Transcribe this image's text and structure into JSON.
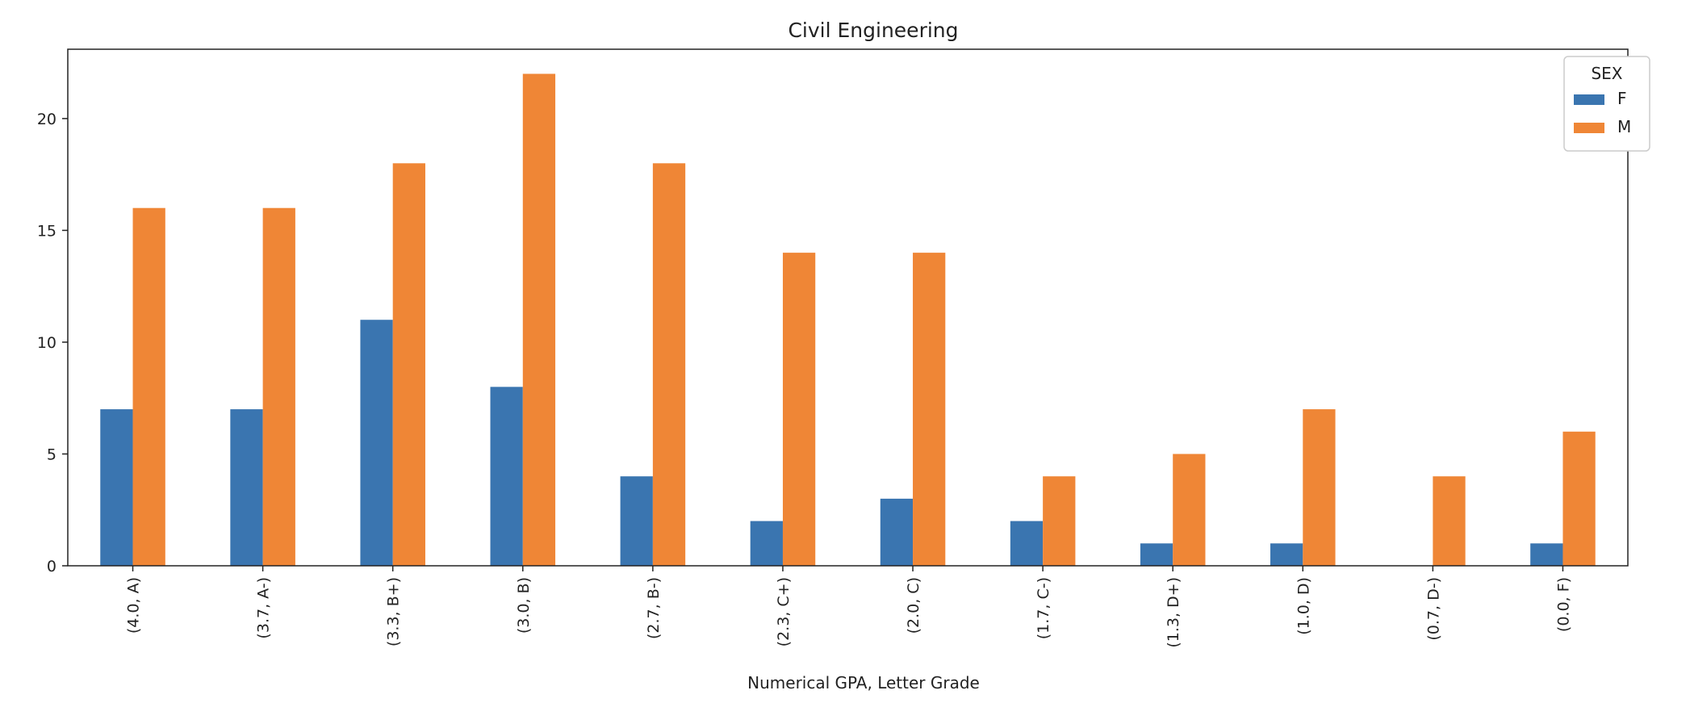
{
  "chart_data": {
    "type": "bar",
    "title": "Civil Engineering",
    "xlabel": "Numerical GPA, Letter Grade",
    "ylabel": "",
    "categories": [
      "(4.0, A)",
      "(3.7, A-)",
      "(3.3, B+)",
      "(3.0, B)",
      "(2.7, B-)",
      "(2.3, C+)",
      "(2.0, C)",
      "(1.7, C-)",
      "(1.3, D+)",
      "(1.0, D)",
      "(0.7, D-)",
      "(0.0, F)"
    ],
    "series": [
      {
        "name": "F",
        "color": "#3a75b0",
        "values": [
          7,
          7,
          11,
          8,
          4,
          2,
          3,
          2,
          1,
          1,
          0,
          1
        ]
      },
      {
        "name": "M",
        "color": "#ef8636",
        "values": [
          16,
          16,
          18,
          22,
          18,
          14,
          14,
          4,
          5,
          7,
          4,
          6
        ]
      }
    ],
    "ylim": [
      0,
      23.1
    ],
    "yticks": [
      0,
      5,
      10,
      15,
      20
    ],
    "grid": false,
    "legend": {
      "title": "SEX",
      "placement": "top-right"
    }
  }
}
